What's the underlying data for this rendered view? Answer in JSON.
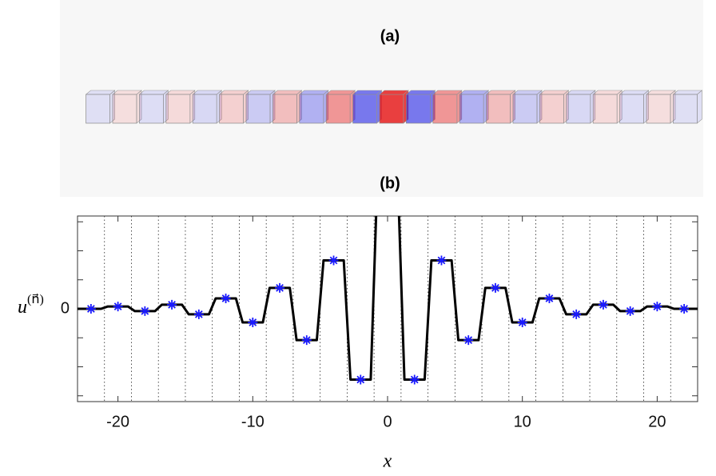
{
  "chart_data": [
    {
      "type": "illustration",
      "title": "(a)"
    },
    {
      "type": "line",
      "title": "(b)",
      "xlabel": "x",
      "ylabel": {
        "base": "u",
        "sup": "(n⃗)"
      },
      "xlim": [
        -23,
        23
      ],
      "xticks": [
        -20,
        -10,
        0,
        10,
        20
      ],
      "xgrid": [
        -21,
        -19,
        -17,
        -15,
        -13,
        -11,
        -9,
        -7,
        -5,
        -3,
        -1,
        1,
        3,
        5,
        7,
        9,
        11,
        13,
        15,
        17,
        19,
        21
      ],
      "ylim": [
        -3.2,
        3.2
      ],
      "yticks": [
        0
      ],
      "yminorticks": [
        -3,
        -2,
        -1,
        1,
        2,
        3
      ],
      "series": [
        {
          "type": "line",
          "color": "#000000",
          "x": [
            -23,
            -21.25,
            -20.75,
            -19.25,
            -18.75,
            -17.25,
            -16.75,
            -15.25,
            -14.75,
            -13.25,
            -12.75,
            -11.25,
            -10.75,
            -9.25,
            -8.75,
            -7.25,
            -6.75,
            -5.25,
            -4.75,
            -3.25,
            -2.75,
            -1.25,
            -0.85,
            null,
            0.85,
            1.25,
            2.75,
            3.25,
            4.75,
            5.25,
            6.75,
            7.25,
            8.75,
            9.25,
            10.75,
            11.25,
            12.75,
            13.25,
            14.75,
            15.25,
            16.75,
            17.25,
            18.75,
            19.25,
            20.75,
            21.25,
            23
          ],
          "values": [
            0,
            0,
            0.08,
            0.08,
            -0.08,
            -0.08,
            0.14,
            0.14,
            -0.19,
            -0.19,
            0.36,
            0.36,
            -0.47,
            -0.47,
            0.72,
            0.72,
            -1.08,
            -1.08,
            1.67,
            1.67,
            -2.44,
            -2.44,
            3.2,
            null,
            3.2,
            -2.44,
            -2.44,
            1.67,
            1.67,
            -1.08,
            -1.08,
            0.72,
            0.72,
            -0.47,
            -0.47,
            0.36,
            0.36,
            -0.19,
            -0.19,
            0.14,
            0.14,
            -0.08,
            -0.08,
            0.08,
            0.08,
            0,
            0
          ]
        },
        {
          "type": "scatter",
          "color": "#1a1aff",
          "x": [
            -22,
            -20,
            -18,
            -16,
            -14,
            -12,
            -10,
            -8,
            -6,
            -4,
            -2,
            2,
            4,
            6,
            8,
            10,
            12,
            14,
            16,
            18,
            20,
            22
          ],
          "values": [
            0,
            0.08,
            -0.08,
            0.14,
            -0.19,
            0.36,
            -0.47,
            0.72,
            -1.08,
            1.67,
            -2.44,
            -2.44,
            1.67,
            -1.08,
            0.72,
            -0.47,
            0.36,
            -0.19,
            0.14,
            -0.08,
            0.08,
            0
          ]
        }
      ]
    }
  ]
}
